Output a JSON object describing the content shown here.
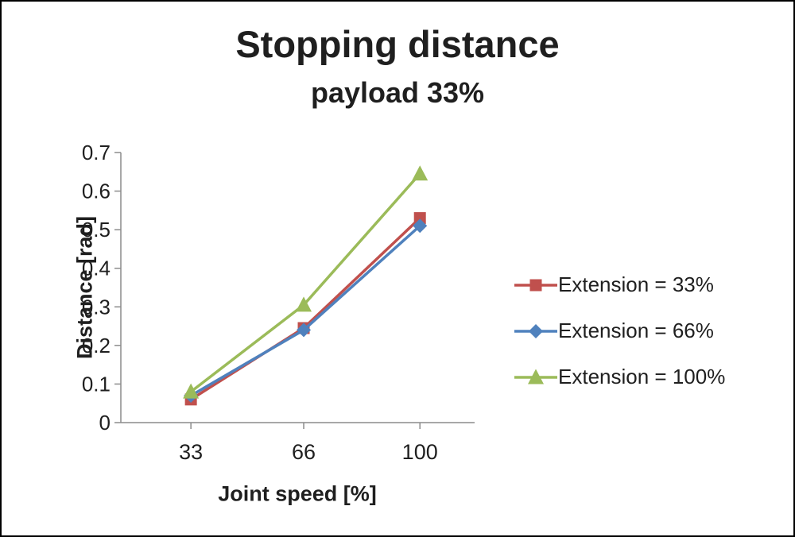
{
  "chart_data": {
    "type": "line",
    "title": "Stopping distance",
    "subtitle": "payload 33%",
    "xlabel": "Joint speed [%]",
    "ylabel": "Distance [rad]",
    "x": [
      33,
      66,
      100
    ],
    "series": [
      {
        "name": "Extension = 33%",
        "marker": "square",
        "color": "#C0504D",
        "values": [
          0.06,
          0.245,
          0.53
        ]
      },
      {
        "name": "Extension = 66%",
        "marker": "diamond",
        "color": "#4F81BD",
        "values": [
          0.07,
          0.24,
          0.51
        ]
      },
      {
        "name": "Extension = 100%",
        "marker": "triangle",
        "color": "#9BBB59",
        "values": [
          0.08,
          0.305,
          0.645
        ]
      }
    ],
    "ylim": [
      0,
      0.7
    ],
    "yticks": [
      0,
      0.1,
      0.2,
      0.3,
      0.4,
      0.5,
      0.6,
      0.7
    ],
    "xlim": [
      12.5,
      116
    ],
    "grid": false,
    "legend_position": "right",
    "colors": {
      "axis": "#8C8C8C",
      "text": "#1F1F1F"
    }
  }
}
